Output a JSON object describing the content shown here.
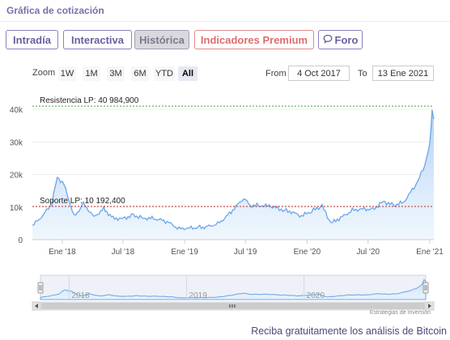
{
  "header": {
    "title": "Gráfica de cotización"
  },
  "tabs": [
    {
      "label": "Intradía",
      "state": "normal"
    },
    {
      "label": "Interactiva",
      "state": "normal"
    },
    {
      "label": "Histórica",
      "state": "active"
    },
    {
      "label": "Indicadores Premium",
      "state": "premium"
    },
    {
      "label": "Foro",
      "state": "normal",
      "icon": "chat-bubble-icon"
    }
  ],
  "zoom": {
    "label": "Zoom",
    "buttons": [
      "1W",
      "1M",
      "3M",
      "6M",
      "YTD",
      "All"
    ],
    "active": "All"
  },
  "range": {
    "from_label": "From",
    "from_value": "4 Oct 2017",
    "to_label": "To",
    "to_value": "13 Ene 2021"
  },
  "colors": {
    "accent": "#7a6fa8",
    "line": "#6aa6e8",
    "fill_top": "#a9cdf4",
    "resistance": "#4a9a4a",
    "support": "#c03030"
  },
  "chart_data": {
    "type": "area",
    "yticks": [
      "0",
      "10k",
      "20k",
      "30k",
      "40k"
    ],
    "ylim": [
      0,
      42000
    ],
    "xticks": [
      "Ene '18",
      "Jul '18",
      "Ene '19",
      "Jul '19",
      "Ene '20",
      "Jul '20",
      "Ene '21"
    ],
    "annotations": [
      {
        "text": "Resistencia LP: 40 984,900",
        "value": 40984.9
      },
      {
        "text": "Soporte LP: 10 192,400",
        "value": 10192.4
      }
    ],
    "navigator_labels": [
      "2018",
      "2019",
      "2020"
    ],
    "series": [
      {
        "x": [
          "2017-10-04",
          "2017-11-01",
          "2017-12-01",
          "2017-12-17",
          "2018-01-06",
          "2018-02-06",
          "2018-03-05",
          "2018-04-06",
          "2018-05-05",
          "2018-06-01",
          "2018-07-01",
          "2018-08-01",
          "2018-09-01",
          "2018-10-01",
          "2018-11-10",
          "2018-12-15",
          "2019-01-15",
          "2019-02-15",
          "2019-03-15",
          "2019-04-15",
          "2019-05-15",
          "2019-06-26",
          "2019-07-15",
          "2019-08-15",
          "2019-09-15",
          "2019-10-26",
          "2019-11-15",
          "2019-12-15",
          "2020-01-15",
          "2020-02-15",
          "2020-03-12",
          "2020-04-15",
          "2020-05-15",
          "2020-06-15",
          "2020-07-15",
          "2020-08-15",
          "2020-09-15",
          "2020-10-15",
          "2020-11-15",
          "2020-12-01",
          "2020-12-17",
          "2021-01-01",
          "2021-01-08",
          "2021-01-13"
        ],
        "values": [
          4300,
          7000,
          11000,
          19300,
          17000,
          7000,
          11000,
          7000,
          9500,
          6500,
          6500,
          7500,
          6600,
          6500,
          5500,
          3300,
          3600,
          3700,
          4000,
          5200,
          8000,
          12800,
          10500,
          10500,
          10200,
          9000,
          8500,
          7200,
          8800,
          10300,
          5000,
          7000,
          9000,
          9500,
          9200,
          11800,
          10500,
          11500,
          16000,
          19000,
          23000,
          29000,
          40000,
          37000
        ]
      }
    ]
  },
  "footer": {
    "credit": "Estrategias de Inversión",
    "cta": "Reciba gratuitamente los análisis de Bitcoin"
  }
}
